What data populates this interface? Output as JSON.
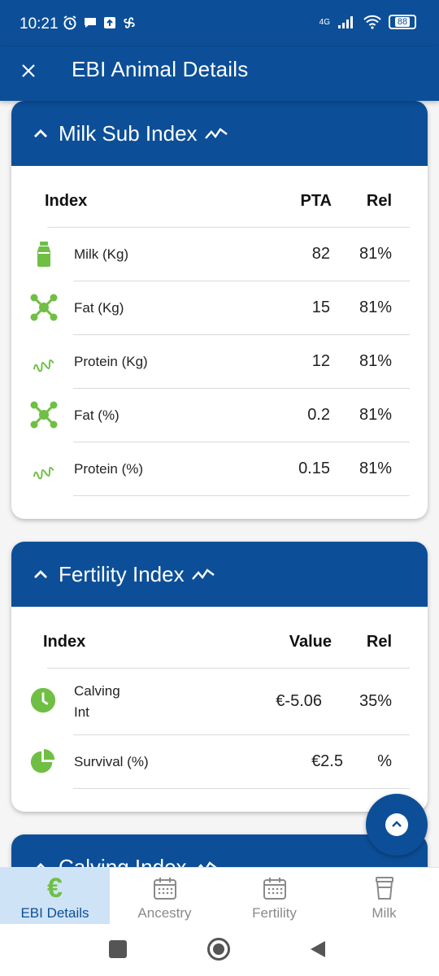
{
  "status": {
    "time": "10:21",
    "network": "4G",
    "battery": "88"
  },
  "appbar": {
    "title": "EBI Animal Details"
  },
  "milk": {
    "title": "Milk Sub Index",
    "headers": {
      "index": "Index",
      "pta": "PTA",
      "rel": "Rel"
    },
    "rows": [
      {
        "label": "Milk (Kg)",
        "pta": "82",
        "rel": "81%",
        "icon": "milk-bottle-icon"
      },
      {
        "label": "Fat (Kg)",
        "pta": "15",
        "rel": "81%",
        "icon": "molecule-icon"
      },
      {
        "label": "Protein (Kg)",
        "pta": "12",
        "rel": "81%",
        "icon": "protein-coil-icon"
      },
      {
        "label": "Fat (%)",
        "pta": "0.2",
        "rel": "81%",
        "icon": "molecule-icon"
      },
      {
        "label": "Protein (%)",
        "pta": "0.15",
        "rel": "81%",
        "icon": "protein-coil-icon"
      }
    ]
  },
  "fertility": {
    "title": "Fertility Index",
    "headers": {
      "index": "Index",
      "value": "Value",
      "rel": "Rel"
    },
    "rows": [
      {
        "label_line1": "Calving",
        "label_line2": "Int",
        "value": "€-5.06",
        "rel": "35%",
        "icon": "clock-icon"
      },
      {
        "label": "Survival (%)",
        "value": "€2.5",
        "rel": "%",
        "icon": "pie-chart-icon"
      }
    ]
  },
  "calving": {
    "title": "Calving Index"
  },
  "nav": [
    {
      "label": "EBI Details",
      "icon": "euro-icon",
      "active": true
    },
    {
      "label": "Ancestry",
      "icon": "calendar-icon"
    },
    {
      "label": "Fertility",
      "icon": "calendar-icon"
    },
    {
      "label": "Milk",
      "icon": "milk-bucket-icon"
    }
  ],
  "colors": {
    "primary": "#0c4f98",
    "accent_green": "#6fbf44",
    "nav_active_bg": "#cfe3f7"
  }
}
